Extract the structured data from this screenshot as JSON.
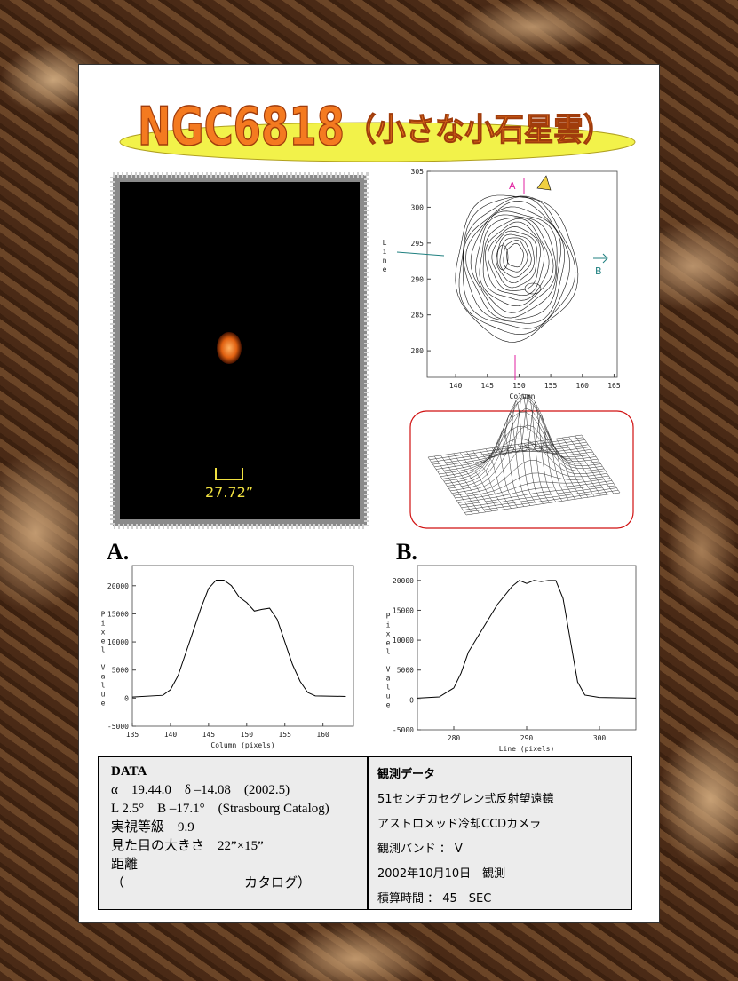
{
  "title": {
    "main": "NGC6818",
    "sub": "（小さな小石星雲）"
  },
  "image": {
    "scale_label": "27.72”"
  },
  "chart_data": [
    {
      "type": "contour",
      "xlabel": "Column",
      "ylabel": "Line",
      "annotations": [
        "A",
        "B"
      ],
      "xlim": [
        135.5,
        165.5
      ],
      "ylim": [
        276.3,
        305
      ],
      "xticks": [
        140,
        145,
        150,
        155,
        160,
        165
      ],
      "yticks": [
        280,
        285,
        290,
        295,
        300,
        305
      ]
    },
    {
      "type": "line",
      "label": "A.",
      "xlabel": "Column (pixels)",
      "ylabel": "Pixel Value",
      "color": "#000000",
      "x": [
        135,
        139,
        140,
        141,
        142,
        143,
        144,
        145,
        146,
        147,
        148,
        149,
        150,
        151,
        152,
        153,
        154,
        155,
        156,
        157,
        158,
        159,
        163
      ],
      "values": [
        200,
        500,
        1500,
        4000,
        8000,
        12000,
        16000,
        19500,
        21000,
        21000,
        20000,
        18000,
        17000,
        15500,
        15800,
        16000,
        14000,
        10000,
        6000,
        3000,
        1000,
        400,
        300
      ],
      "xlim": [
        135,
        164
      ],
      "ylim": [
        -5000,
        23600
      ],
      "xticks": [
        135,
        140,
        145,
        150,
        155,
        160
      ],
      "yticks": [
        -5000,
        0,
        5000,
        10000,
        15000,
        20000
      ]
    },
    {
      "type": "line",
      "label": "B.",
      "xlabel": "Line (pixels)",
      "ylabel": "Pixel Value",
      "color": "#000000",
      "x": [
        275,
        278,
        280,
        281,
        282,
        284,
        286,
        288,
        289,
        290,
        291,
        292,
        293,
        294,
        295,
        296,
        297,
        298,
        300,
        305
      ],
      "values": [
        300,
        500,
        2000,
        4500,
        8000,
        12000,
        16000,
        19000,
        20000,
        19500,
        20000,
        19800,
        20000,
        20000,
        17000,
        10000,
        3000,
        800,
        400,
        300
      ],
      "xlim": [
        275,
        305
      ],
      "ylim": [
        -5000,
        22500
      ],
      "xticks": [
        280,
        290,
        300
      ],
      "yticks": [
        -5000,
        0,
        5000,
        10000,
        15000,
        20000
      ]
    }
  ],
  "data_table": {
    "left": {
      "heading": "DATA",
      "lines": [
        "α　19.44.0　δ –14.08　(2002.5)",
        "L 2.5°　B –17.1°　(Strasbourg Catalog)",
        "実視等級　9.9",
        "見た目の大きさ　22”×15”",
        "距離",
        "（　　　　　　　　　カタログ）"
      ]
    },
    "right": {
      "heading": "観測データ",
      "lines": [
        "51センチカセグレン式反射望遠鏡",
        "アストロメッド冷却CCDカメラ",
        "観測バンド ： V",
        "2002年10月10日　観測",
        "積算時間 ： 45　SEC"
      ]
    }
  }
}
